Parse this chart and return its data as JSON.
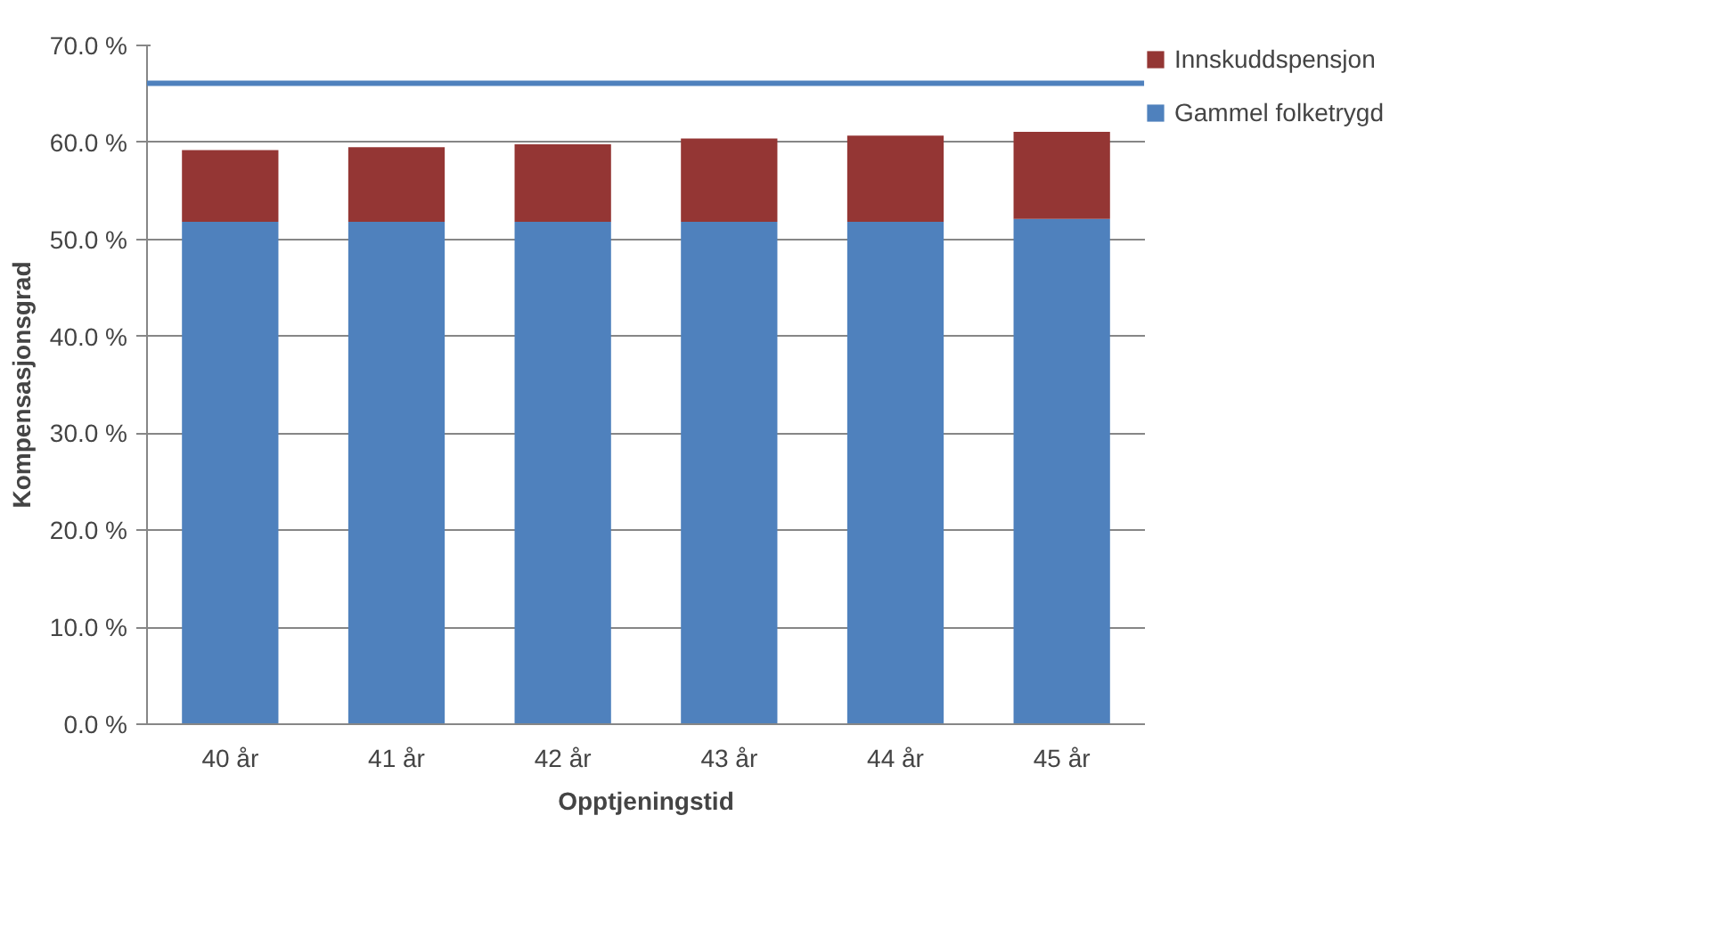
{
  "chart_data": {
    "type": "bar",
    "stacked": true,
    "xlabel": "Opptjeningstid",
    "ylabel": "Kompensasjonsgrad",
    "categories": [
      "40 år",
      "41 år",
      "42 år",
      "43 år",
      "44 år",
      "45 år"
    ],
    "series": [
      {
        "name": "Gammel folketrygd",
        "color": "#4f81bd",
        "values": [
          51.8,
          51.8,
          51.8,
          51.8,
          51.8,
          52.1
        ]
      },
      {
        "name": "Innskuddspensjon",
        "color": "#943634",
        "values": [
          7.4,
          7.7,
          8.0,
          8.6,
          8.9,
          9.0
        ]
      }
    ],
    "ylim": [
      0,
      70
    ],
    "yticks": [
      {
        "value": 0,
        "label": "0.0 %"
      },
      {
        "value": 10,
        "label": "10.0 %"
      },
      {
        "value": 20,
        "label": "20.0 %"
      },
      {
        "value": 30,
        "label": "30.0 %"
      },
      {
        "value": 40,
        "label": "40.0 %"
      },
      {
        "value": 50,
        "label": "50.0 %"
      },
      {
        "value": 60,
        "label": "60.0 %"
      },
      {
        "value": 70,
        "label": "70.0 %"
      }
    ],
    "ref_lines": [
      {
        "axis": "y",
        "value": 66.1,
        "color": "#4f81bd"
      }
    ],
    "grid": "y",
    "legend": "right"
  }
}
